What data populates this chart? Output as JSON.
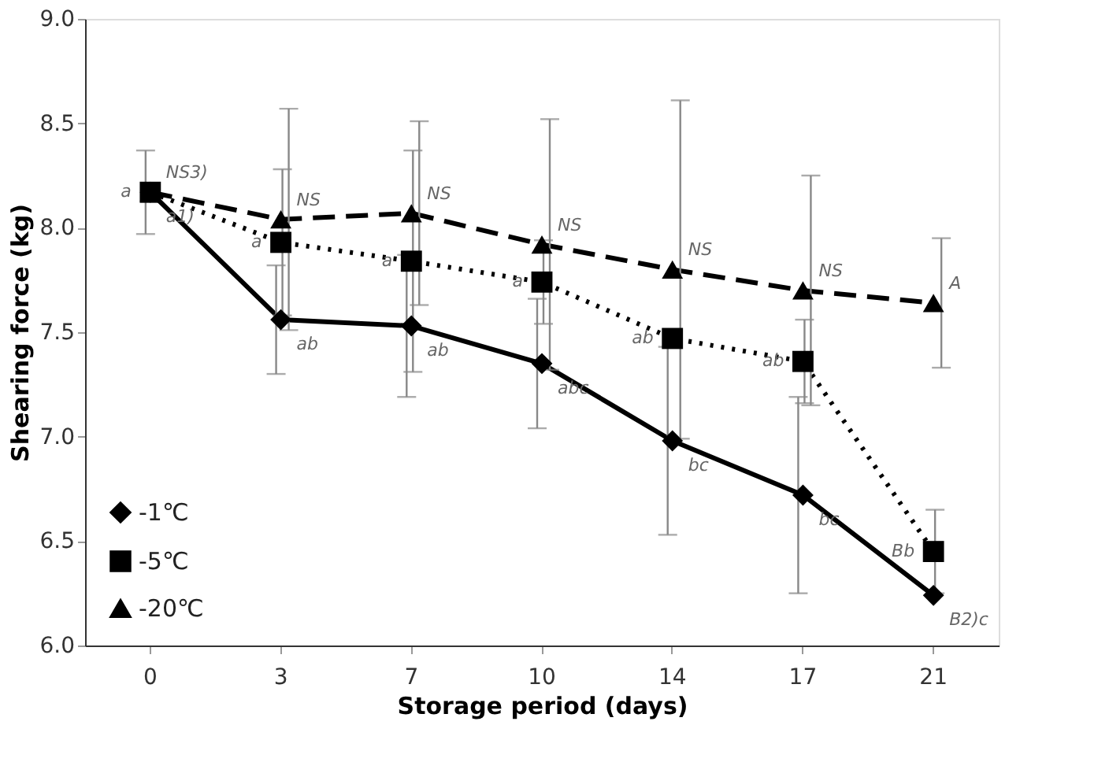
{
  "chart_data": {
    "type": "line",
    "xlabel": "Storage period (days)",
    "ylabel": "Shearing force (kg)",
    "categories": [
      "0",
      "3",
      "7",
      "10",
      "14",
      "17",
      "21"
    ],
    "ylim": [
      6.0,
      9.0
    ],
    "yticks": [
      {
        "value": 6,
        "label": "6.0"
      },
      6.5,
      {
        "value": 7,
        "label": "7.0"
      },
      7.5,
      {
        "value": 8,
        "label": "8.0"
      },
      8.5,
      {
        "value": 9,
        "label": "9.0"
      }
    ],
    "grid": false,
    "legend": "bottom left",
    "series": [
      {
        "name": "-1℃",
        "color": "#000000",
        "marker": "diamond",
        "line_style": "solid",
        "values": [
          8.17,
          7.56,
          7.53,
          7.35,
          6.98,
          6.72,
          6.24
        ],
        "errors": [
          0.2,
          0.26,
          0.34,
          0.31,
          0.45,
          0.47,
          null
        ]
      },
      {
        "name": "-5℃",
        "color": "#000000",
        "marker": "square",
        "line_style": "dotted",
        "values": [
          8.17,
          7.93,
          7.84,
          7.74,
          7.47,
          7.36,
          6.45
        ],
        "errors": [
          null,
          0.35,
          0.53,
          0.2,
          null,
          0.2,
          0.2
        ]
      },
      {
        "name": "-20℃",
        "color": "#000000",
        "marker": "triangle",
        "line_style": "dashed",
        "values": [
          8.17,
          8.04,
          8.07,
          7.92,
          7.8,
          7.7,
          7.64
        ],
        "errors": [
          null,
          0.53,
          0.44,
          0.6,
          0.81,
          0.55,
          0.31
        ]
      }
    ],
    "annotations": [
      {
        "text": "NS3)",
        "x": "0",
        "y": 8.17
      },
      {
        "text": "a",
        "x": "0",
        "y": 8.17
      },
      {
        "text": "a1)",
        "x": "0",
        "y": 8.17
      },
      {
        "text": "NS",
        "x": "3",
        "y": 8.04
      },
      {
        "text": "NS",
        "x": "7",
        "y": 8.07
      },
      {
        "text": "NS",
        "x": "10",
        "y": 7.92
      },
      {
        "text": "NS",
        "x": "14",
        "y": 7.8
      },
      {
        "text": "NS",
        "x": "17",
        "y": 7.7
      },
      {
        "text": "A",
        "x": "21",
        "y": 7.64
      },
      {
        "text": "a",
        "x": "3",
        "y": 7.93
      },
      {
        "text": "a",
        "x": "7",
        "y": 7.84
      },
      {
        "text": "a",
        "x": "10",
        "y": 7.74
      },
      {
        "text": "ab",
        "x": "14",
        "y": 7.47
      },
      {
        "text": "ab",
        "x": "17",
        "y": 7.36
      },
      {
        "text": "Bb",
        "x": "21",
        "y": 6.45
      },
      {
        "text": "ab",
        "x": "3",
        "y": 7.56
      },
      {
        "text": "ab",
        "x": "7",
        "y": 7.53
      },
      {
        "text": "abc",
        "x": "10",
        "y": 7.35
      },
      {
        "text": "bc",
        "x": "14",
        "y": 6.98
      },
      {
        "text": "bc",
        "x": "17",
        "y": 6.72
      },
      {
        "text": "B2)c",
        "x": "21",
        "y": 6.24
      }
    ]
  }
}
